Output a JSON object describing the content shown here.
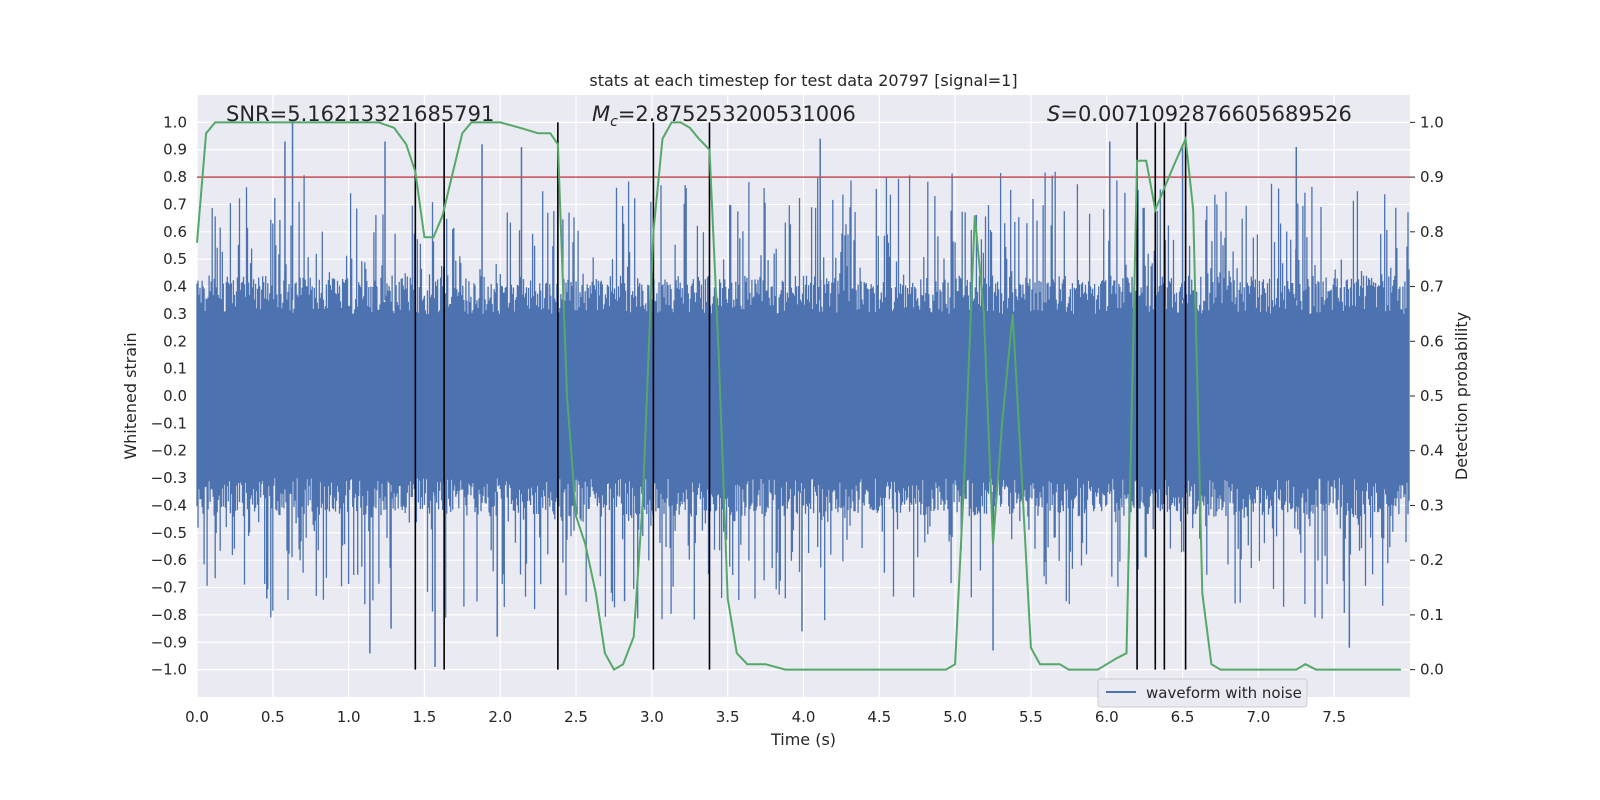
{
  "chart_data": {
    "type": "line",
    "title": "stats at each timestep for test data 20797 [signal=1]",
    "xlabel": "Time (s)",
    "ylabel": "Whitened strain",
    "y2label": "Detection probability",
    "xlim": [
      0,
      8
    ],
    "ylim": [
      -1.1,
      1.1
    ],
    "y2lim": [
      -0.05,
      1.05
    ],
    "x_ticks": [
      "0.0",
      "0.5",
      "1.0",
      "1.5",
      "2.0",
      "2.5",
      "3.0",
      "3.5",
      "4.0",
      "4.5",
      "5.0",
      "5.5",
      "6.0",
      "6.5",
      "7.0",
      "7.5"
    ],
    "y_ticks": [
      "1.0",
      "0.9",
      "0.8",
      "0.7",
      "0.6",
      "0.5",
      "0.4",
      "0.3",
      "0.2",
      "0.1",
      "0.0",
      "−0.1",
      "−0.2",
      "−0.3",
      "−0.4",
      "−0.5",
      "−0.6",
      "−0.7",
      "−0.8",
      "−0.9",
      "−1.0"
    ],
    "y2_ticks": [
      "1.0",
      "0.9",
      "0.8",
      "0.7",
      "0.6",
      "0.5",
      "0.4",
      "0.3",
      "0.2",
      "0.1",
      "0.0"
    ],
    "grid": true,
    "legend": {
      "placement": "lower-right",
      "entries": [
        "waveform with noise"
      ]
    },
    "annotations": {
      "snr": "SNR=5.16213321685791",
      "mc_symbol": "M",
      "mc_sub": "c",
      "mc_value": "=2.875253200531006",
      "s_symbol": "S",
      "s_value": "=0.007109287660568952​6"
    },
    "threshold": {
      "axis": "y2",
      "value": 0.9,
      "color": "#c44e52"
    },
    "vertical_lines": [
      1.44,
      1.63,
      2.38,
      3.01,
      3.38,
      6.2,
      6.32,
      6.38,
      6.52
    ],
    "waveform": {
      "name": "waveform with noise",
      "color": "#4c72b0",
      "n_samples": 1200,
      "core_envelope": 0.4,
      "peak_range": [
        -0.99,
        1.0
      ],
      "tall_spikes": [
        {
          "x": 0.58,
          "y": 0.93
        },
        {
          "x": 0.63,
          "y": 1.0
        },
        {
          "x": 1.24,
          "y": 0.93
        },
        {
          "x": 1.88,
          "y": 0.92
        },
        {
          "x": 2.14,
          "y": 0.91
        },
        {
          "x": 4.11,
          "y": 0.94
        },
        {
          "x": 6.02,
          "y": 0.93
        },
        {
          "x": 6.5,
          "y": 0.92
        },
        {
          "x": 7.25,
          "y": 0.91
        },
        {
          "x": 0.46,
          "y": -0.74
        },
        {
          "x": 1.14,
          "y": -0.94
        },
        {
          "x": 1.57,
          "y": -0.99
        },
        {
          "x": 1.98,
          "y": -0.88
        },
        {
          "x": 3.99,
          "y": -0.86
        },
        {
          "x": 5.25,
          "y": -0.93
        },
        {
          "x": 7.6,
          "y": -0.92
        },
        {
          "x": 2.82,
          "y": -0.75
        },
        {
          "x": 1.28,
          "y": -0.85
        }
      ]
    },
    "probability": {
      "name": "detection probability",
      "color": "#55a868",
      "x": [
        0.0,
        0.06,
        0.12,
        0.2,
        0.3,
        0.4,
        0.5,
        0.6,
        0.7,
        0.8,
        0.9,
        1.0,
        1.1,
        1.2,
        1.3,
        1.38,
        1.44,
        1.5,
        1.56,
        1.62,
        1.68,
        1.75,
        1.81,
        1.88,
        2.0,
        2.13,
        2.25,
        2.33,
        2.38,
        2.44,
        2.5,
        2.56,
        2.63,
        2.69,
        2.75,
        2.81,
        2.88,
        2.94,
        3.01,
        3.07,
        3.13,
        3.19,
        3.25,
        3.31,
        3.38,
        3.44,
        3.5,
        3.56,
        3.63,
        3.69,
        3.75,
        3.88,
        4.0,
        4.13,
        4.25,
        4.38,
        4.5,
        4.63,
        4.75,
        4.88,
        4.94,
        5.0,
        5.06,
        5.13,
        5.19,
        5.25,
        5.31,
        5.38,
        5.44,
        5.5,
        5.56,
        5.63,
        5.69,
        5.75,
        5.81,
        5.88,
        5.94,
        6.0,
        6.06,
        6.13,
        6.2,
        6.26,
        6.32,
        6.38,
        6.44,
        6.52,
        6.57,
        6.63,
        6.69,
        6.75,
        6.88,
        7.0,
        7.13,
        7.25,
        7.31,
        7.38,
        7.5,
        7.63,
        7.75,
        7.88,
        7.94
      ],
      "y": [
        0.78,
        0.98,
        1.0,
        1.0,
        1.0,
        1.0,
        1.0,
        1.0,
        1.0,
        1.0,
        1.0,
        1.0,
        1.0,
        1.0,
        0.99,
        0.96,
        0.91,
        0.79,
        0.79,
        0.83,
        0.9,
        0.98,
        1.0,
        1.0,
        1.0,
        0.99,
        0.98,
        0.98,
        0.96,
        0.5,
        0.28,
        0.23,
        0.14,
        0.03,
        0.0,
        0.01,
        0.06,
        0.31,
        0.8,
        0.97,
        1.0,
        1.0,
        0.99,
        0.97,
        0.95,
        0.58,
        0.13,
        0.03,
        0.01,
        0.01,
        0.01,
        0.0,
        0.0,
        0.0,
        0.0,
        0.0,
        0.0,
        0.0,
        0.0,
        0.0,
        0.0,
        0.01,
        0.35,
        0.83,
        0.65,
        0.23,
        0.45,
        0.65,
        0.35,
        0.04,
        0.01,
        0.01,
        0.01,
        0.0,
        0.0,
        0.0,
        0.0,
        0.01,
        0.02,
        0.03,
        0.93,
        0.93,
        0.84,
        0.88,
        0.92,
        0.97,
        0.84,
        0.14,
        0.01,
        0.0,
        0.0,
        0.0,
        0.0,
        0.0,
        0.01,
        0.0,
        0.0,
        0.0,
        0.0,
        0.0,
        0.0
      ]
    }
  }
}
